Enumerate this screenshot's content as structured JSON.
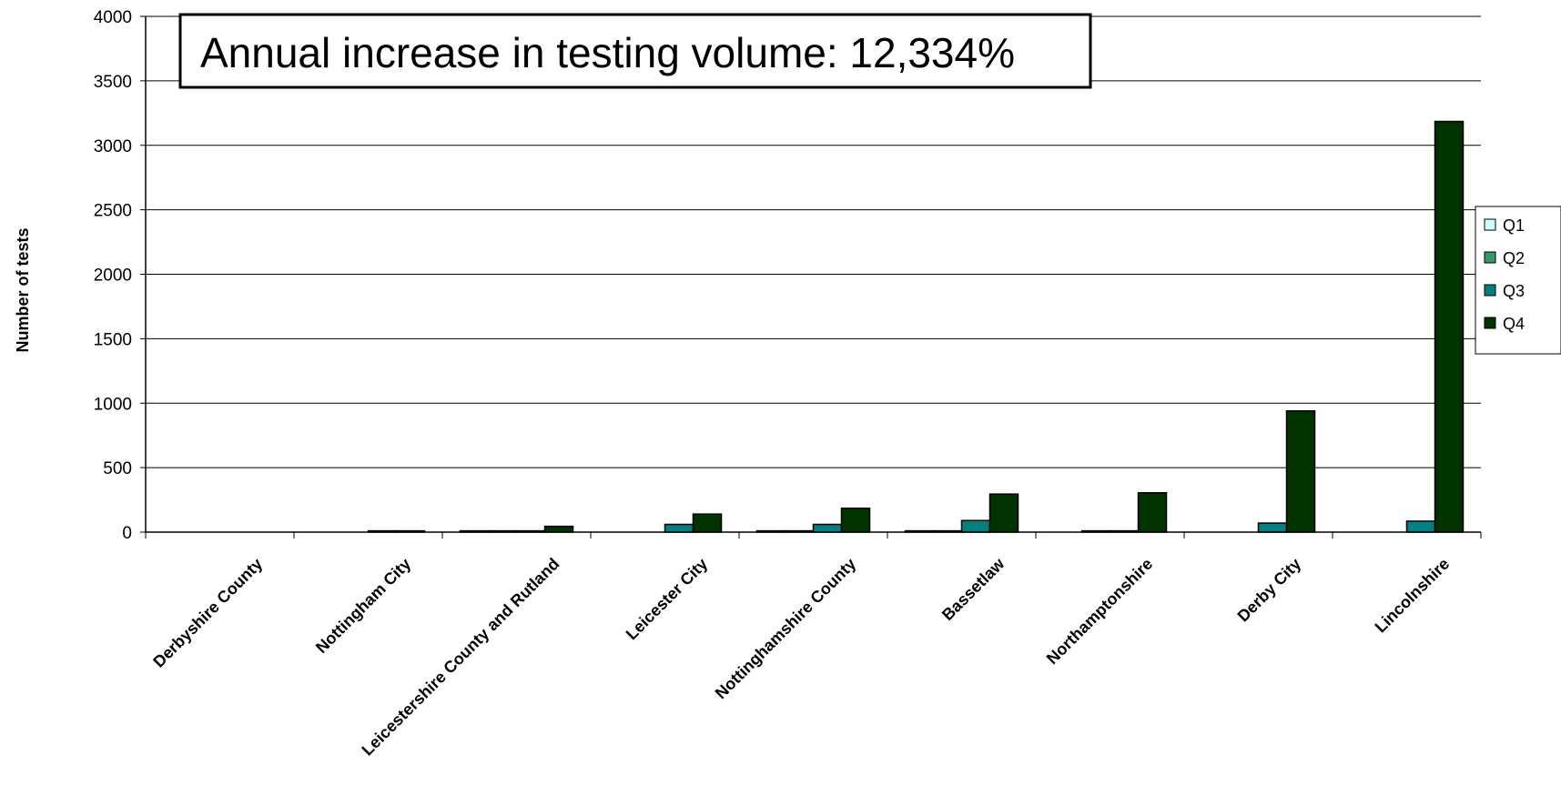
{
  "chart_data": {
    "type": "bar",
    "title": "",
    "xlabel": "",
    "ylabel": "Number of tests",
    "ylim": [
      0,
      4000
    ],
    "yticks": [
      0,
      500,
      1000,
      1500,
      2000,
      2500,
      3000,
      3500,
      4000
    ],
    "grid": true,
    "legend_position": "right",
    "annotation": "Annual increase in testing volume: 12,334%",
    "categories": [
      "Derbyshire County",
      "Nottingham City",
      "Leicestershire County and Rutland",
      "Leicester City",
      "Nottinghamshire County",
      "Bassetlaw",
      "Northamptonshire",
      "Derby City",
      "Lincolnshire"
    ],
    "series": [
      {
        "name": "Q1",
        "color": "#ccffff",
        "values": [
          0,
          0,
          10,
          0,
          10,
          10,
          0,
          0,
          0
        ]
      },
      {
        "name": "Q2",
        "color": "#339966",
        "values": [
          0,
          0,
          10,
          0,
          10,
          10,
          10,
          0,
          0
        ]
      },
      {
        "name": "Q3",
        "color": "#008080",
        "values": [
          0,
          10,
          10,
          60,
          60,
          90,
          10,
          70,
          85
        ]
      },
      {
        "name": "Q4",
        "color": "#003300",
        "values": [
          0,
          10,
          45,
          140,
          185,
          295,
          305,
          940,
          3185
        ]
      }
    ]
  }
}
